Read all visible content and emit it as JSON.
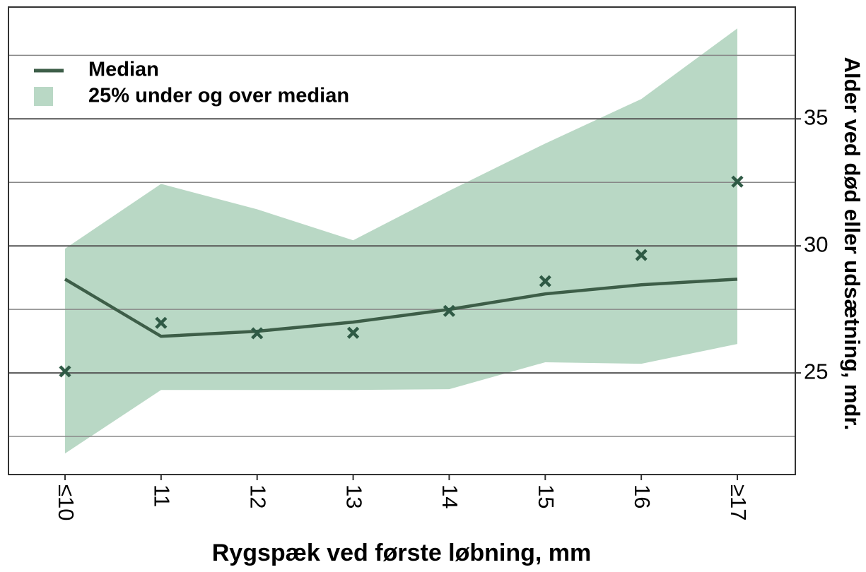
{
  "chart_data": {
    "type": "line",
    "xlabel": "Rygspæk ved første løbning, mm",
    "ylabel": "Alder ved død eller udsætning, mdr.",
    "categories": [
      "≤10",
      "11",
      "12",
      "13",
      "14",
      "15",
      "16",
      "≥17"
    ],
    "series": [
      {
        "name": "Median",
        "kind": "line",
        "color": "#3d5e48",
        "values": [
          28.69,
          26.44,
          26.64,
          27.0,
          27.5,
          28.11,
          28.47,
          28.69
        ]
      },
      {
        "name": "25% under og over median",
        "kind": "band",
        "color": "#b9d8c5",
        "upper": [
          29.89,
          32.44,
          31.44,
          30.22,
          32.17,
          34.03,
          35.78,
          38.56
        ],
        "lower": [
          21.83,
          24.33,
          24.33,
          24.33,
          24.36,
          25.42,
          25.36,
          26.14
        ]
      },
      {
        "kind": "scatter",
        "marker": "x",
        "color": "#2f5a45",
        "values": [
          25.06,
          26.97,
          26.56,
          26.58,
          27.44,
          28.61,
          29.64,
          32.53
        ]
      }
    ],
    "ylim": [
      21,
      39.4
    ],
    "yticks": [
      25,
      30,
      35
    ],
    "minor_yticks": [
      22.5,
      27.5,
      32.5,
      37.5
    ],
    "y_axis_side": "right",
    "grid": true,
    "legend": "upper left"
  }
}
